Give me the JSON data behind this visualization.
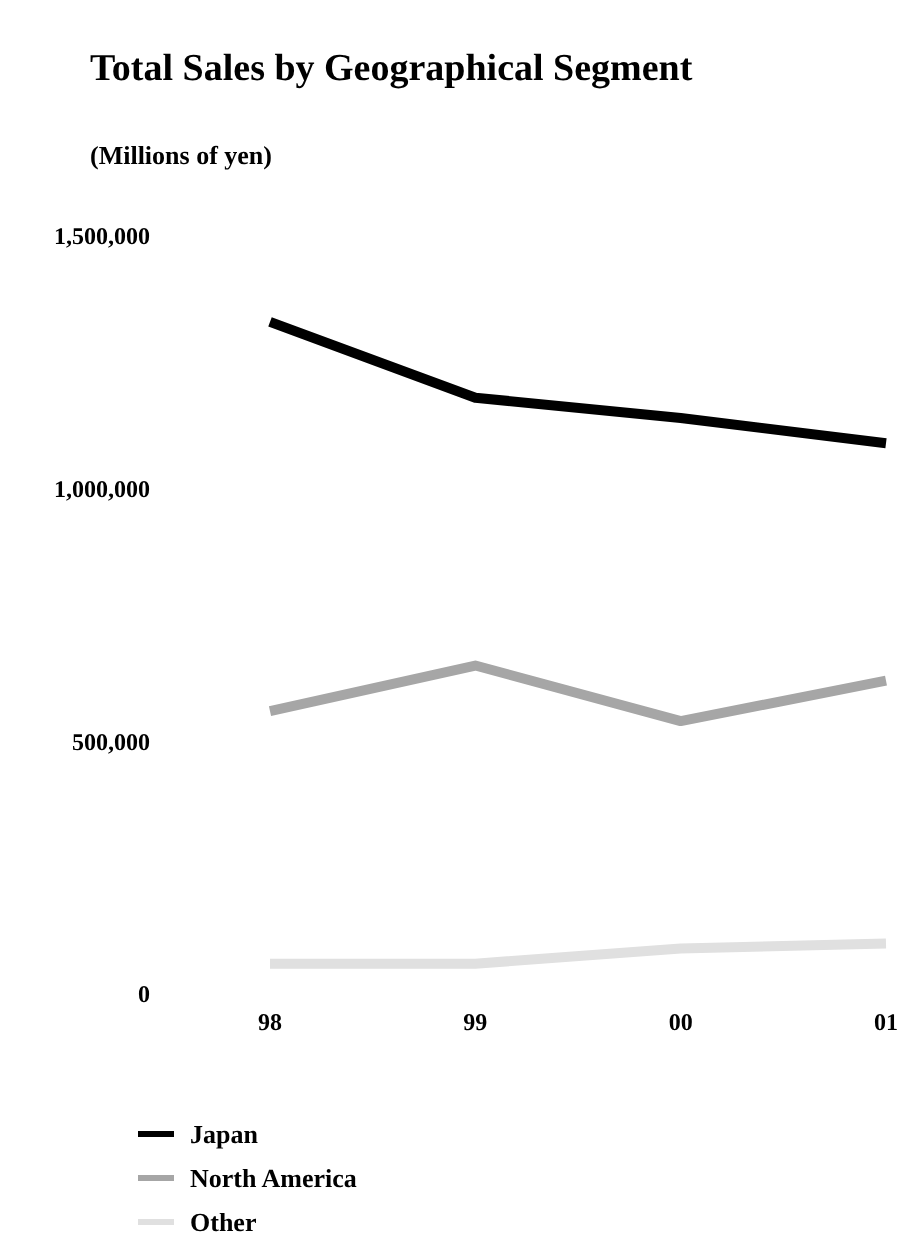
{
  "chart_data": {
    "type": "line",
    "title": "Total Sales by Geographical Segment",
    "subtitle": "(Millions of yen)",
    "categories": [
      "98",
      "99",
      "00",
      "01"
    ],
    "series": [
      {
        "name": "Japan",
        "color": "#000000",
        "values": [
          1330000,
          1180000,
          1140000,
          1090000
        ]
      },
      {
        "name": "North America",
        "color": "#a6a6a6",
        "values": [
          560000,
          650000,
          540000,
          620000
        ]
      },
      {
        "name": "Other",
        "color": "#e0e0e0",
        "values": [
          60000,
          60000,
          90000,
          100000
        ]
      }
    ],
    "ylim": [
      0,
      1500000
    ],
    "yticks": [
      {
        "value": 0,
        "label": "0"
      },
      {
        "value": 500000,
        "label": "500,000"
      },
      {
        "value": 1000000,
        "label": "1,000,000"
      },
      {
        "value": 1500000,
        "label": "1,500,000"
      }
    ],
    "grid": false,
    "legend": "bottom",
    "marker": "none",
    "line_style": "solid"
  }
}
